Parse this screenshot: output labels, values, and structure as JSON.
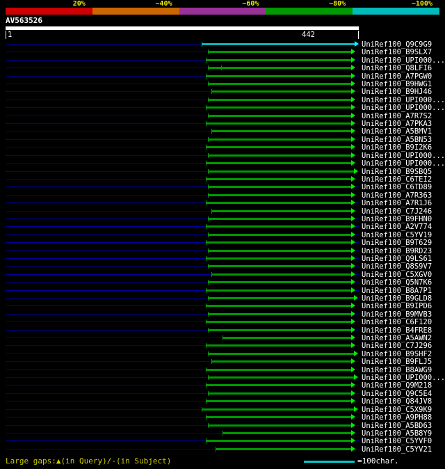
{
  "scale_bar": {
    "segments": [
      {
        "label": "20%",
        "color": "#cc0000"
      },
      {
        "label": "~40%",
        "color": "#cc6600"
      },
      {
        "label": "~60%",
        "color": "#993399"
      },
      {
        "label": "~80%",
        "color": "#009900"
      },
      {
        "label": "~100%",
        "color": "#00bbbb"
      }
    ]
  },
  "query": {
    "name": "AV563526",
    "start": "1",
    "end": "442"
  },
  "footer": {
    "gaps_legend": "Large gaps:▲(in Query)/-(in Subject)",
    "scale_legend": "=100char.",
    "scale_color": "#00cccc"
  },
  "chart_data": {
    "type": "alignment-overview",
    "title": "AV563526",
    "query_length": 442,
    "axis": {
      "start": 1,
      "end": 442
    },
    "identity_scale": [
      "20%",
      "~40%",
      "~60%",
      "~80%",
      "~100%"
    ],
    "rows": [
      {
        "label": "UniRef100_Q9C9G9",
        "start": 246,
        "end": 442,
        "color": "#00bbbb"
      },
      {
        "label": "UniRef100_B9SLX7",
        "start": 254,
        "end": 438,
        "color": "#009900"
      },
      {
        "label": "UniRef100_UPI000...",
        "start": 251,
        "end": 438,
        "color": "#009900"
      },
      {
        "label": "UniRef100_Q8LFI6",
        "start": 254,
        "end": 438,
        "color": "#009900",
        "gap_ticks": [
          270
        ]
      },
      {
        "label": "UniRef100_A7PGW0",
        "start": 251,
        "end": 438,
        "color": "#009900"
      },
      {
        "label": "UniRef100_B9HWG1",
        "start": 254,
        "end": 438,
        "color": "#009900"
      },
      {
        "label": "UniRef100_B9HJ46",
        "start": 258,
        "end": 438,
        "color": "#009900"
      },
      {
        "label": "UniRef100_UPI000...",
        "start": 254,
        "end": 438,
        "color": "#009900"
      },
      {
        "label": "UniRef100_UPI000...",
        "start": 251,
        "end": 438,
        "color": "#009900"
      },
      {
        "label": "UniRef100_A7R7S2",
        "start": 254,
        "end": 438,
        "color": "#009900"
      },
      {
        "label": "UniRef100_A7PKA3",
        "start": 251,
        "end": 438,
        "color": "#009900"
      },
      {
        "label": "UniRef100_A5BMV1",
        "start": 258,
        "end": 438,
        "color": "#009900"
      },
      {
        "label": "UniRef100_A5BN53",
        "start": 254,
        "end": 438,
        "color": "#009900"
      },
      {
        "label": "UniRef100_B9I2K6",
        "start": 251,
        "end": 438,
        "color": "#009900"
      },
      {
        "label": "UniRef100_UPI000...",
        "start": 254,
        "end": 438,
        "color": "#009900"
      },
      {
        "label": "UniRef100_UPI000...",
        "start": 251,
        "end": 438,
        "color": "#009900"
      },
      {
        "label": "UniRef100_B9SBQ5",
        "start": 254,
        "end": 441,
        "color": "#009900"
      },
      {
        "label": "UniRef100_C6TEI2",
        "start": 251,
        "end": 438,
        "color": "#009900"
      },
      {
        "label": "UniRef100_C6TD89",
        "start": 254,
        "end": 438,
        "color": "#009900"
      },
      {
        "label": "UniRef100_A7R363",
        "start": 254,
        "end": 438,
        "color": "#009900"
      },
      {
        "label": "UniRef100_A7R1J6",
        "start": 251,
        "end": 438,
        "color": "#009900"
      },
      {
        "label": "UniRef100_C7J246",
        "start": 258,
        "end": 438,
        "color": "#009900"
      },
      {
        "label": "UniRef100_B9FHN0",
        "start": 254,
        "end": 438,
        "color": "#009900"
      },
      {
        "label": "UniRef100_A2V774",
        "start": 251,
        "end": 438,
        "color": "#009900"
      },
      {
        "label": "UniRef100_C5YV19",
        "start": 254,
        "end": 438,
        "color": "#009900"
      },
      {
        "label": "UniRef100_B9T629",
        "start": 251,
        "end": 438,
        "color": "#009900"
      },
      {
        "label": "UniRef100_B9RD23",
        "start": 254,
        "end": 438,
        "color": "#009900"
      },
      {
        "label": "UniRef100_Q9LS61",
        "start": 251,
        "end": 438,
        "color": "#009900"
      },
      {
        "label": "UniRef100_Q8S9V7",
        "start": 254,
        "end": 438,
        "color": "#009900"
      },
      {
        "label": "UniRef100_C5XGV0",
        "start": 258,
        "end": 438,
        "color": "#009900"
      },
      {
        "label": "UniRef100_Q5N7K6",
        "start": 254,
        "end": 438,
        "color": "#009900"
      },
      {
        "label": "UniRef100_B8A7P1",
        "start": 251,
        "end": 438,
        "color": "#009900"
      },
      {
        "label": "UniRef100_B9GLD8",
        "start": 254,
        "end": 441,
        "color": "#009900"
      },
      {
        "label": "UniRef100_B9IPD6",
        "start": 251,
        "end": 438,
        "color": "#009900"
      },
      {
        "label": "UniRef100_B9MVB3",
        "start": 254,
        "end": 438,
        "color": "#009900"
      },
      {
        "label": "UniRef100_C6F120",
        "start": 251,
        "end": 438,
        "color": "#009900"
      },
      {
        "label": "UniRef100_B4FRE8",
        "start": 254,
        "end": 438,
        "color": "#009900"
      },
      {
        "label": "UniRef100_A5AWN2",
        "start": 272,
        "end": 438,
        "color": "#009900"
      },
      {
        "label": "UniRef100_C7J296",
        "start": 251,
        "end": 438,
        "color": "#009900"
      },
      {
        "label": "UniRef100_B9SHF2",
        "start": 254,
        "end": 441,
        "color": "#009900"
      },
      {
        "label": "UniRef100_B9FLJ5",
        "start": 258,
        "end": 438,
        "color": "#009900"
      },
      {
        "label": "UniRef100_B8AWG9",
        "start": 251,
        "end": 438,
        "color": "#009900"
      },
      {
        "label": "UniRef100_UPI000...",
        "start": 254,
        "end": 441,
        "color": "#009900"
      },
      {
        "label": "UniRef100_Q9M218",
        "start": 251,
        "end": 438,
        "color": "#009900"
      },
      {
        "label": "UniRef100_Q9C5E4",
        "start": 254,
        "end": 438,
        "color": "#009900"
      },
      {
        "label": "UniRef100_Q84JV8",
        "start": 251,
        "end": 438,
        "color": "#009900"
      },
      {
        "label": "UniRef100_C5X9K9",
        "start": 246,
        "end": 441,
        "color": "#009900"
      },
      {
        "label": "UniRef100_A9PH88",
        "start": 251,
        "end": 438,
        "color": "#009900"
      },
      {
        "label": "UniRef100_A5BD63",
        "start": 254,
        "end": 438,
        "color": "#009900"
      },
      {
        "label": "UniRef100_A5B8Y9",
        "start": 272,
        "end": 438,
        "color": "#009900"
      },
      {
        "label": "UniRef100_C5YVF0",
        "start": 251,
        "end": 438,
        "color": "#009900"
      },
      {
        "label": "UniRef100_C5YV21",
        "start": 263,
        "end": 438,
        "color": "#009900"
      }
    ]
  }
}
